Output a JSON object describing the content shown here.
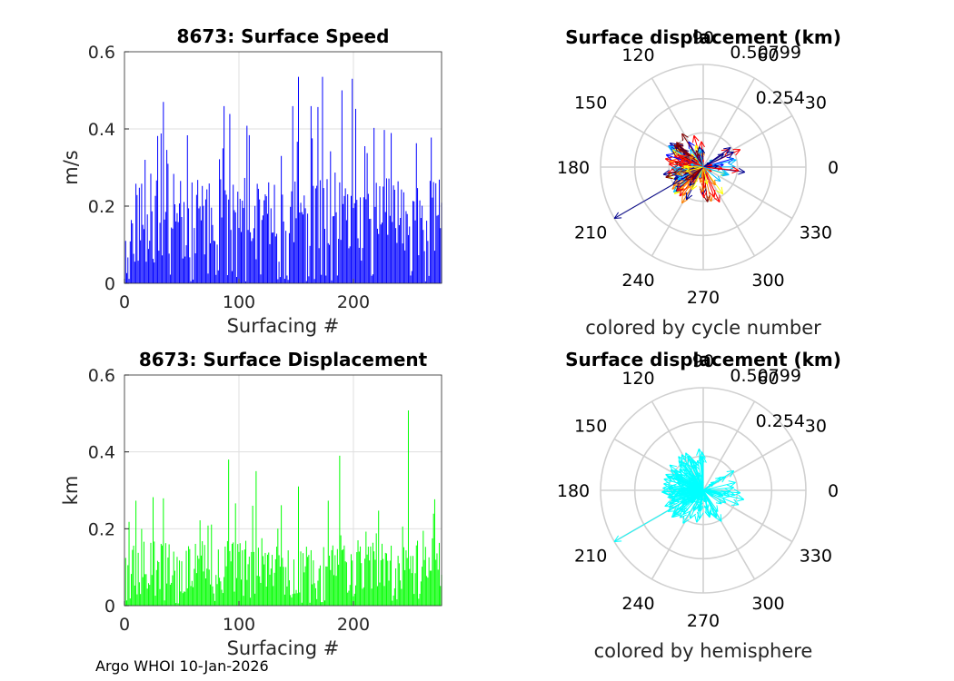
{
  "chart_data": [
    {
      "type": "bar",
      "title": "8673: Surface Speed",
      "xlabel": "Surfacing #",
      "ylabel": "m/s",
      "xlim": [
        0,
        277
      ],
      "ylim": [
        0,
        0.6
      ],
      "xticks": [
        "0",
        "100",
        "200"
      ],
      "yticks": [
        "0",
        "0.2",
        "0.4",
        "0.6"
      ],
      "grid": true,
      "color": "#0000ff",
      "series": [
        {
          "name": "speed",
          "n": 277,
          "mean": 0.16,
          "max": 0.54,
          "peaks": [
            [
              34,
              0.47
            ],
            [
              152,
              0.535
            ],
            [
              173,
              0.535
            ],
            [
              190,
              0.5
            ],
            [
              199,
              0.53
            ]
          ]
        }
      ]
    },
    {
      "type": "polar",
      "title": "Surface displacement (km)",
      "caption": "colored by cycle number",
      "rmax": 0.50799,
      "rticks": [
        "0.254",
        "0.50799"
      ],
      "angle_ticks": [
        "0",
        "30",
        "60",
        "90",
        "120",
        "150",
        "180",
        "210",
        "240",
        "270",
        "300",
        "330"
      ],
      "colormap": [
        "#00008f",
        "#0000ff",
        "#00bfff",
        "#ffff00",
        "#ff8000",
        "#ff0000",
        "#800000"
      ]
    },
    {
      "type": "bar",
      "title": "8673: Surface Displacement",
      "xlabel": "Surfacing #",
      "ylabel": "km",
      "xlim": [
        0,
        277
      ],
      "ylim": [
        0,
        0.6
      ],
      "xticks": [
        "0",
        "100",
        "200"
      ],
      "yticks": [
        "0",
        "0.2",
        "0.4",
        "0.6"
      ],
      "grid": true,
      "color": "#00ff00",
      "series": [
        {
          "name": "displacement",
          "n": 277,
          "mean": 0.1,
          "max": 0.508,
          "peaks": [
            [
              91,
              0.38
            ],
            [
              188,
              0.39
            ],
            [
              248,
              0.508
            ],
            [
              152,
              0.31
            ],
            [
              115,
              0.35
            ]
          ]
        }
      ]
    },
    {
      "type": "polar",
      "title": "Surface displacement (km)",
      "caption": "colored by hemisphere",
      "rmax": 0.50799,
      "rticks": [
        "0.254",
        "0.50799"
      ],
      "angle_ticks": [
        "0",
        "30",
        "60",
        "90",
        "120",
        "150",
        "180",
        "210",
        "240",
        "270",
        "300",
        "330"
      ],
      "color": "#00ffff"
    }
  ],
  "footer": "Argo WHOI 10-Jan-2026"
}
